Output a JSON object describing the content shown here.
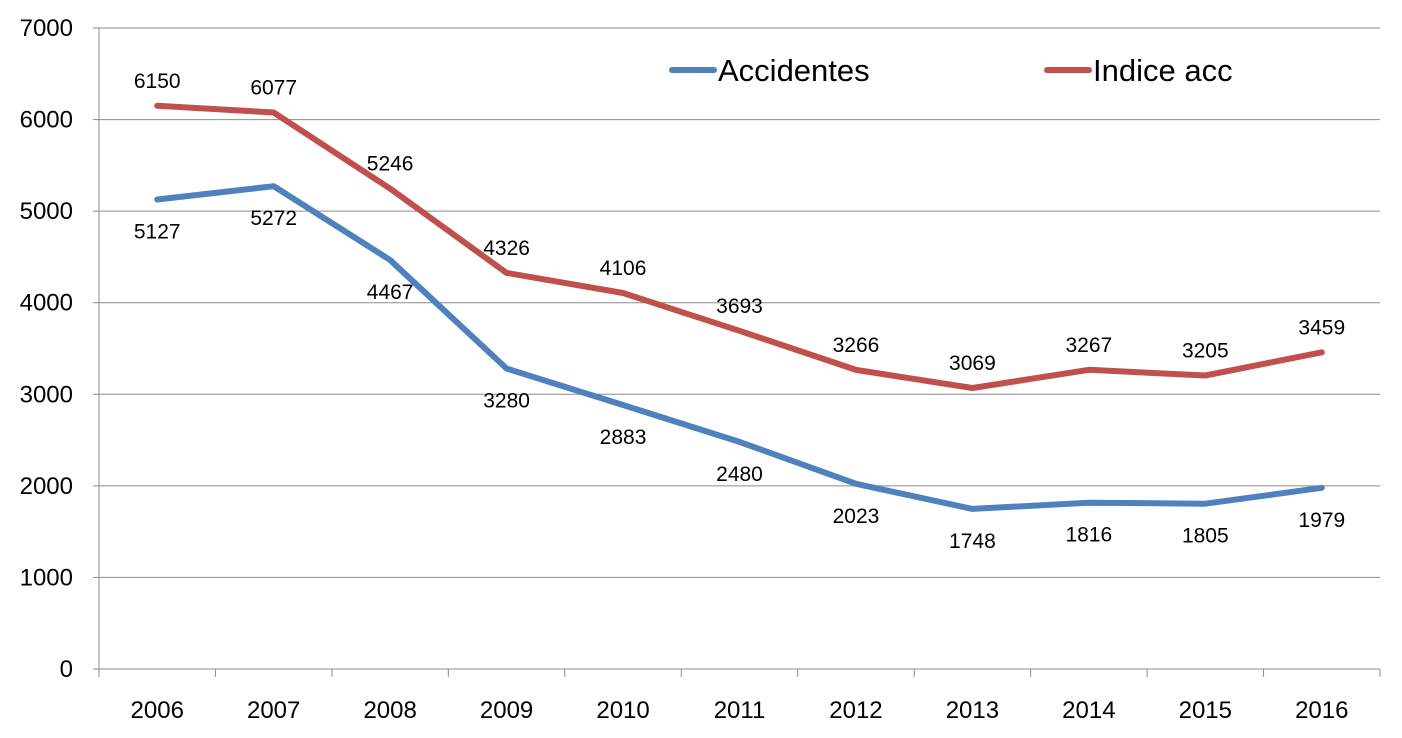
{
  "chart_data": {
    "type": "line",
    "title": "",
    "xlabel": "",
    "ylabel": "",
    "categories": [
      "2006",
      "2007",
      "2008",
      "2009",
      "2010",
      "2011",
      "2012",
      "2013",
      "2014",
      "2015",
      "2016"
    ],
    "ylim": [
      0,
      7000
    ],
    "yticks": [
      "0",
      "1000",
      "2000",
      "3000",
      "4000",
      "5000",
      "6000",
      "7000"
    ],
    "grid": "horizontal",
    "legend_position": "top",
    "series": [
      {
        "name": "Accidentes",
        "color": "#4F81BD",
        "label_position": "below",
        "values": [
          5127,
          5272,
          4467,
          3280,
          2883,
          2480,
          2023,
          1748,
          1816,
          1805,
          1979
        ]
      },
      {
        "name": "Indice acc",
        "color": "#C0504D",
        "label_position": "above",
        "values": [
          6150,
          6077,
          5246,
          4326,
          4106,
          3693,
          3266,
          3069,
          3267,
          3205,
          3459
        ]
      }
    ]
  }
}
